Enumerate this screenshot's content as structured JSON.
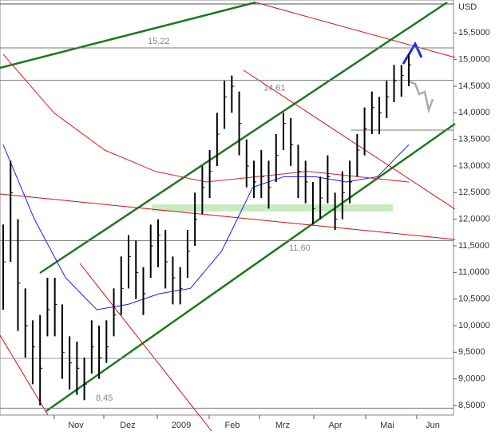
{
  "chart_data": {
    "type": "ohlc",
    "currency": "USD",
    "x_labels": [
      "Nov",
      "Dez",
      "2009",
      "Feb",
      "Mrz",
      "Apr",
      "Mai",
      "Jun"
    ],
    "high": [
      11.9,
      13.1,
      12.0,
      10.7,
      10.1,
      10.2,
      10.9,
      10.9,
      10.4,
      9.8,
      9.7,
      9.4,
      10.1,
      10.0,
      10.1,
      10.7,
      11.3,
      11.7,
      11.6,
      11.1,
      11.9,
      12.0,
      11.8,
      11.3,
      11.1,
      11.8,
      12.5,
      13.0,
      13.3,
      14.0,
      14.6,
      14.7,
      14.4,
      13.5,
      13.1,
      13.3,
      13.1,
      13.6,
      14.0,
      13.9,
      13.4,
      13.1,
      12.7,
      12.8,
      13.2,
      12.5,
      12.9,
      13.1,
      13.6,
      14.1,
      14.4,
      14.3,
      14.6,
      14.9,
      14.9,
      15.1
    ],
    "low": [
      10.3,
      11.2,
      9.9,
      9.4,
      8.9,
      8.5,
      9.8,
      9.8,
      9.0,
      8.8,
      8.7,
      8.6,
      9.1,
      9.0,
      9.3,
      9.8,
      10.2,
      10.7,
      10.5,
      10.2,
      10.9,
      11.1,
      10.7,
      10.4,
      10.4,
      10.9,
      11.5,
      12.1,
      12.4,
      13.0,
      13.7,
      14.0,
      13.2,
      12.6,
      12.4,
      12.4,
      12.2,
      12.7,
      13.3,
      13.0,
      12.4,
      12.3,
      11.9,
      12.0,
      12.3,
      11.8,
      12.0,
      12.3,
      12.8,
      13.2,
      13.6,
      13.6,
      13.9,
      14.2,
      14.3,
      14.5
    ],
    "close": [
      11.2,
      12.5,
      10.8,
      10.0,
      9.6,
      9.2,
      10.3,
      10.4,
      9.5,
      9.3,
      9.2,
      8.9,
      9.6,
      9.4,
      9.6,
      10.2,
      10.7,
      11.3,
      11.0,
      10.6,
      11.5,
      11.7,
      11.2,
      10.9,
      10.7,
      11.4,
      12.0,
      12.6,
      12.9,
      13.6,
      14.3,
      14.5,
      13.8,
      13.0,
      12.7,
      12.8,
      12.6,
      13.2,
      13.8,
      13.4,
      12.9,
      12.7,
      12.2,
      12.4,
      12.8,
      12.0,
      12.5,
      12.7,
      13.3,
      13.7,
      14.1,
      14.0,
      14.3,
      14.6,
      14.7,
      14.9
    ],
    "moving_averages": [
      {
        "color": "#1a1aff",
        "values": [
          13.4,
          12.0,
          10.9,
          10.3,
          10.4,
          10.6,
          10.7,
          11.4,
          12.6,
          12.8,
          12.8,
          12.7,
          12.8,
          13.4
        ]
      },
      {
        "color": "#dd2020",
        "values": [
          15.1,
          14.0,
          13.3,
          12.9,
          12.7,
          12.8,
          12.9,
          12.8,
          12.7
        ]
      }
    ],
    "levels": [
      {
        "value": 15.22,
        "label": "15,22"
      },
      {
        "value": 14.61,
        "label": "14,61"
      },
      {
        "value": 11.6,
        "label": "11,60"
      },
      {
        "value": 8.45,
        "label": "8,45"
      }
    ],
    "ylim": [
      8.32,
      16.12
    ],
    "yticks": [
      {
        "value": 8.5,
        "label": "8,5000"
      },
      {
        "value": 9,
        "label": "9,0000"
      },
      {
        "value": 9.5,
        "label": "9,5000"
      },
      {
        "value": 10,
        "label": "10,0000"
      },
      {
        "value": 10.5,
        "label": "10,5000"
      },
      {
        "value": 11,
        "label": "11,0000"
      },
      {
        "value": 11.5,
        "label": "11,5000"
      },
      {
        "value": 12,
        "label": "12,0000"
      },
      {
        "value": 12.5,
        "label": "12,5000"
      },
      {
        "value": 13,
        "label": "13,0000"
      },
      {
        "value": 13.5,
        "label": "13,5000"
      },
      {
        "value": 14,
        "label": "14,0000"
      },
      {
        "value": 14.5,
        "label": "14,5000"
      },
      {
        "value": 15,
        "label": "15,0000"
      },
      {
        "value": 15.5,
        "label": "15,5000"
      }
    ]
  }
}
